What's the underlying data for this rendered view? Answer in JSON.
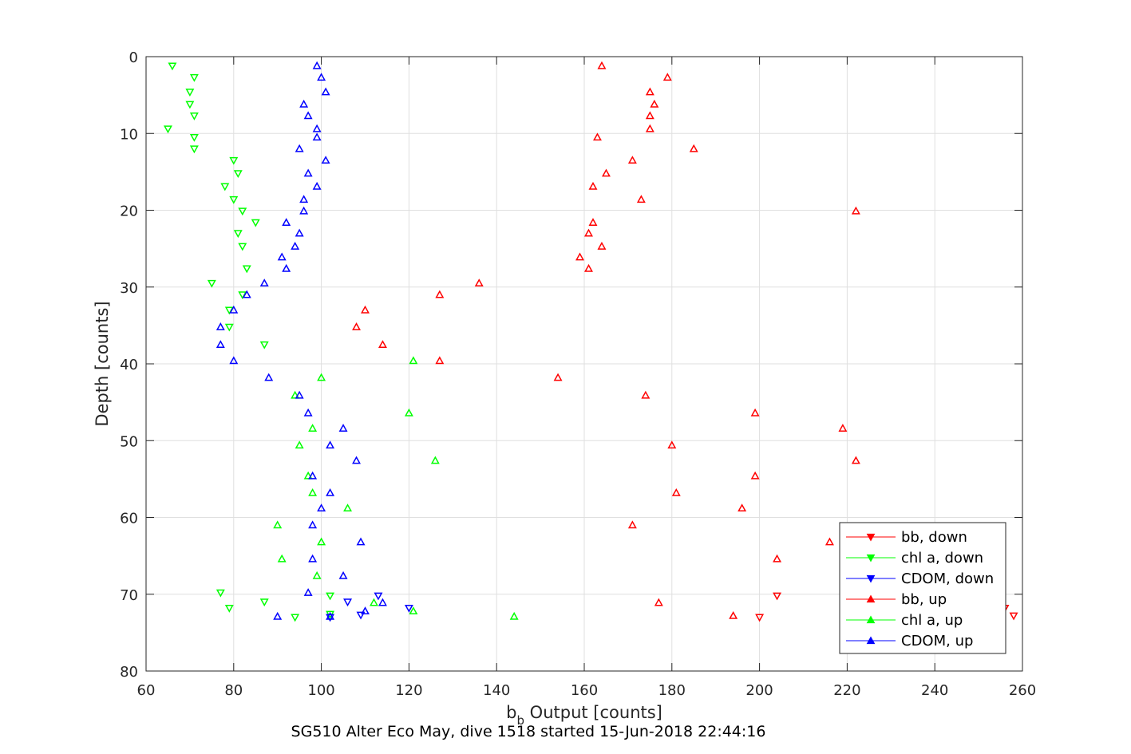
{
  "chart_data": {
    "type": "scatter",
    "xlabel": "b",
    "xlabel_sub": "b",
    "xlabel_rest": " Output [counts]",
    "ylabel": "Depth [counts]",
    "subtitle": "SG510 Alter Eco May, dive 1518 started 15-Jun-2018 22:44:16",
    "xlim": [
      60,
      260
    ],
    "ylim": [
      0,
      80
    ],
    "y_reversed": true,
    "xticks": [
      60,
      80,
      100,
      120,
      140,
      160,
      180,
      200,
      220,
      240,
      260
    ],
    "yticks": [
      0,
      10,
      20,
      30,
      40,
      50,
      60,
      70,
      80
    ],
    "grid": true,
    "legend_position": "bottom-right",
    "series": [
      {
        "name": "bb, down",
        "color": "#ff0000",
        "marker": "triangle-down",
        "points": [
          [
            200,
            73.0
          ],
          [
            204,
            70.2
          ],
          [
            256,
            71.8
          ],
          [
            258,
            72.8
          ]
        ]
      },
      {
        "name": "chl a, down",
        "color": "#00ff00",
        "marker": "triangle-down",
        "points": [
          [
            66,
            1.2
          ],
          [
            71,
            2.7
          ],
          [
            70,
            4.6
          ],
          [
            70,
            6.2
          ],
          [
            71,
            7.7
          ],
          [
            65,
            9.4
          ],
          [
            71,
            10.5
          ],
          [
            71,
            12.0
          ],
          [
            80,
            13.5
          ],
          [
            81,
            15.2
          ],
          [
            78,
            16.9
          ],
          [
            80,
            18.6
          ],
          [
            82,
            20.1
          ],
          [
            85,
            21.6
          ],
          [
            81,
            23.0
          ],
          [
            82,
            24.7
          ],
          [
            83,
            27.6
          ],
          [
            75,
            29.5
          ],
          [
            82,
            31.0
          ],
          [
            79,
            33.0
          ],
          [
            79,
            35.2
          ],
          [
            87,
            37.5
          ],
          [
            77,
            69.8
          ],
          [
            79,
            71.8
          ],
          [
            87,
            71.0
          ],
          [
            94,
            73.0
          ],
          [
            102,
            70.2
          ],
          [
            102,
            72.6
          ]
        ]
      },
      {
        "name": "CDOM, down",
        "color": "#0000ff",
        "marker": "triangle-down",
        "points": [
          [
            102,
            73.0
          ],
          [
            106,
            71.0
          ],
          [
            109,
            72.7
          ],
          [
            120,
            71.8
          ],
          [
            113,
            70.2
          ]
        ]
      },
      {
        "name": "bb, up",
        "color": "#ff0000",
        "marker": "triangle-up",
        "points": [
          [
            164,
            1.2
          ],
          [
            179,
            2.7
          ],
          [
            175,
            4.6
          ],
          [
            176,
            6.2
          ],
          [
            175,
            7.7
          ],
          [
            175,
            9.4
          ],
          [
            163,
            10.5
          ],
          [
            185,
            12.0
          ],
          [
            171,
            13.5
          ],
          [
            165,
            15.2
          ],
          [
            162,
            16.9
          ],
          [
            173,
            18.6
          ],
          [
            222,
            20.1
          ],
          [
            162,
            21.6
          ],
          [
            161,
            23.0
          ],
          [
            164,
            24.7
          ],
          [
            159,
            26.1
          ],
          [
            161,
            27.6
          ],
          [
            136,
            29.5
          ],
          [
            127,
            31.0
          ],
          [
            110,
            33.0
          ],
          [
            108,
            35.2
          ],
          [
            114,
            37.5
          ],
          [
            127,
            39.6
          ],
          [
            154,
            41.8
          ],
          [
            174,
            44.1
          ],
          [
            199,
            46.4
          ],
          [
            219,
            48.4
          ],
          [
            180,
            50.6
          ],
          [
            222,
            52.6
          ],
          [
            199,
            54.6
          ],
          [
            181,
            56.8
          ],
          [
            196,
            58.8
          ],
          [
            171,
            61.0
          ],
          [
            216,
            63.2
          ],
          [
            204,
            65.4
          ],
          [
            177,
            71.1
          ],
          [
            194,
            72.8
          ]
        ]
      },
      {
        "name": "chl a, up",
        "color": "#00ff00",
        "marker": "triangle-up",
        "points": [
          [
            121,
            39.6
          ],
          [
            100,
            41.8
          ],
          [
            94,
            44.1
          ],
          [
            120,
            46.4
          ],
          [
            98,
            48.4
          ],
          [
            95,
            50.6
          ],
          [
            126,
            52.6
          ],
          [
            97,
            54.6
          ],
          [
            98,
            56.8
          ],
          [
            106,
            58.8
          ],
          [
            90,
            61.0
          ],
          [
            100,
            63.2
          ],
          [
            91,
            65.4
          ],
          [
            99,
            67.6
          ],
          [
            112,
            71.1
          ],
          [
            121,
            72.2
          ],
          [
            144,
            72.9
          ]
        ]
      },
      {
        "name": "CDOM, up",
        "color": "#0000ff",
        "marker": "triangle-up",
        "points": [
          [
            99,
            1.2
          ],
          [
            100,
            2.7
          ],
          [
            101,
            4.6
          ],
          [
            96,
            6.2
          ],
          [
            97,
            7.7
          ],
          [
            99,
            9.4
          ],
          [
            99,
            10.5
          ],
          [
            95,
            12.0
          ],
          [
            101,
            13.5
          ],
          [
            97,
            15.2
          ],
          [
            99,
            16.9
          ],
          [
            96,
            18.6
          ],
          [
            96,
            20.1
          ],
          [
            92,
            21.6
          ],
          [
            95,
            23.0
          ],
          [
            94,
            24.7
          ],
          [
            91,
            26.1
          ],
          [
            92,
            27.6
          ],
          [
            87,
            29.5
          ],
          [
            83,
            31.0
          ],
          [
            80,
            33.0
          ],
          [
            77,
            35.2
          ],
          [
            77,
            37.5
          ],
          [
            80,
            39.6
          ],
          [
            88,
            41.8
          ],
          [
            95,
            44.1
          ],
          [
            97,
            46.4
          ],
          [
            105,
            48.4
          ],
          [
            102,
            50.6
          ],
          [
            108,
            52.6
          ],
          [
            98,
            54.6
          ],
          [
            102,
            56.8
          ],
          [
            100,
            58.8
          ],
          [
            98,
            61.0
          ],
          [
            109,
            63.2
          ],
          [
            98,
            65.4
          ],
          [
            105,
            67.6
          ],
          [
            97,
            69.8
          ],
          [
            114,
            71.1
          ],
          [
            110,
            72.2
          ],
          [
            90,
            72.9
          ],
          [
            102,
            72.9
          ]
        ]
      }
    ]
  }
}
